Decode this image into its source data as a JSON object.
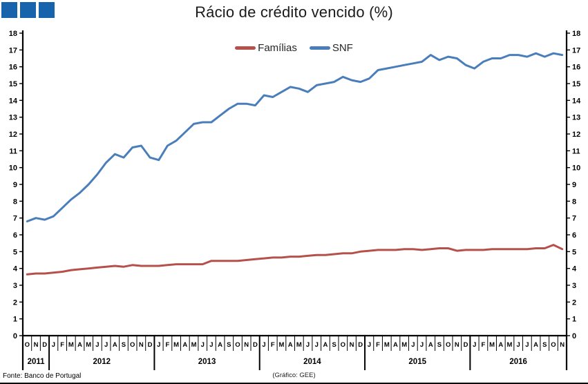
{
  "logo": {
    "color": "#1864AC",
    "squares": 3
  },
  "footer": {
    "source": "Fonte: Banco de Portugal",
    "credit": "(Gráfico: GEE)"
  },
  "chart_data": {
    "type": "line",
    "title": "Rácio de crédito vencido (%)",
    "xlabel": "",
    "ylabel": "",
    "ylim": [
      0,
      18
    ],
    "y_tick_step": 1,
    "dual_axis": true,
    "grid": false,
    "legend_position": "top-center",
    "x_months": [
      "O",
      "N",
      "D",
      "J",
      "F",
      "M",
      "A",
      "M",
      "J",
      "J",
      "A",
      "S",
      "O",
      "N",
      "D",
      "J",
      "F",
      "M",
      "A",
      "M",
      "J",
      "J",
      "A",
      "S",
      "O",
      "N",
      "D",
      "J",
      "F",
      "M",
      "A",
      "M",
      "J",
      "J",
      "A",
      "S",
      "O",
      "N",
      "D",
      "J",
      "F",
      "M",
      "A",
      "M",
      "J",
      "J",
      "A",
      "S",
      "O",
      "N",
      "D",
      "J",
      "F",
      "M",
      "A",
      "M",
      "J",
      "J",
      "A",
      "S",
      "O",
      "N"
    ],
    "x_years": [
      {
        "label": "2011",
        "count": 3
      },
      {
        "label": "2012",
        "count": 12
      },
      {
        "label": "2013",
        "count": 12
      },
      {
        "label": "2014",
        "count": 12
      },
      {
        "label": "2015",
        "count": 12
      },
      {
        "label": "2016",
        "count": 11
      }
    ],
    "series": [
      {
        "id": "familias",
        "name": "Famílias",
        "color": "#B5504B",
        "values": [
          3.65,
          3.7,
          3.7,
          3.75,
          3.8,
          3.9,
          3.95,
          4.0,
          4.05,
          4.1,
          4.15,
          4.1,
          4.2,
          4.15,
          4.15,
          4.15,
          4.2,
          4.25,
          4.25,
          4.25,
          4.25,
          4.45,
          4.45,
          4.45,
          4.45,
          4.5,
          4.55,
          4.6,
          4.65,
          4.65,
          4.7,
          4.7,
          4.75,
          4.8,
          4.8,
          4.85,
          4.9,
          4.9,
          5.0,
          5.05,
          5.1,
          5.1,
          5.1,
          5.15,
          5.15,
          5.1,
          5.15,
          5.2,
          5.2,
          5.05,
          5.1,
          5.1,
          5.1,
          5.15,
          5.15,
          5.15,
          5.15,
          5.15,
          5.2,
          5.2,
          5.4,
          5.15
        ]
      },
      {
        "id": "snf",
        "name": "SNF",
        "color": "#4A7EBB",
        "values": [
          6.8,
          7.0,
          6.9,
          7.1,
          7.6,
          8.1,
          8.5,
          9.0,
          9.6,
          10.3,
          10.8,
          10.6,
          11.2,
          11.3,
          10.6,
          10.45,
          11.3,
          11.6,
          12.1,
          12.6,
          12.7,
          12.7,
          13.1,
          13.5,
          13.8,
          13.8,
          13.7,
          14.3,
          14.2,
          14.5,
          14.8,
          14.7,
          14.5,
          14.9,
          15.0,
          15.1,
          15.4,
          15.2,
          15.1,
          15.3,
          15.8,
          15.9,
          16.0,
          16.1,
          16.2,
          16.3,
          16.7,
          16.4,
          16.6,
          16.5,
          16.1,
          15.9,
          16.3,
          16.5,
          16.5,
          16.7,
          16.7,
          16.6,
          16.8,
          16.6,
          16.8,
          16.7
        ]
      }
    ]
  }
}
